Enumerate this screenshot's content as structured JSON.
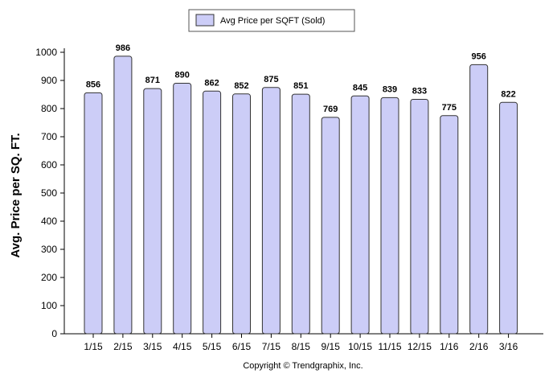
{
  "chart_data": {
    "type": "bar",
    "categories": [
      "1/15",
      "2/15",
      "3/15",
      "4/15",
      "5/15",
      "6/15",
      "7/15",
      "8/15",
      "9/15",
      "10/15",
      "11/15",
      "12/15",
      "1/16",
      "2/16",
      "3/16"
    ],
    "series": [
      {
        "name": "Avg Price per SQFT (Sold)",
        "values": [
          856,
          986,
          871,
          890,
          862,
          852,
          875,
          851,
          769,
          845,
          839,
          833,
          775,
          956,
          822
        ],
        "color": "#cccdf7"
      }
    ],
    "data_labels": [
      "856",
      "986",
      "871",
      "890",
      "862",
      "852",
      "875",
      "851",
      "769",
      "845",
      "839",
      "833",
      "775",
      "956",
      "822"
    ],
    "title": "",
    "xlabel": "",
    "ylabel": "Avg. Price per SQ. FT.",
    "ylim": [
      0,
      1000
    ],
    "yticks": [
      0,
      100,
      200,
      300,
      400,
      500,
      600,
      700,
      800,
      900,
      1000
    ],
    "ytick_labels": [
      "0",
      "100",
      "200",
      "300",
      "400",
      "500",
      "600",
      "700",
      "800",
      "900",
      "1000"
    ],
    "grid": false,
    "legend": {
      "position": "top-center",
      "entries": [
        "Avg Price per SQFT (Sold)"
      ]
    },
    "bar_outline_color": "#333333"
  },
  "footer": {
    "copyright": "Copyright © Trendgraphix, Inc."
  }
}
